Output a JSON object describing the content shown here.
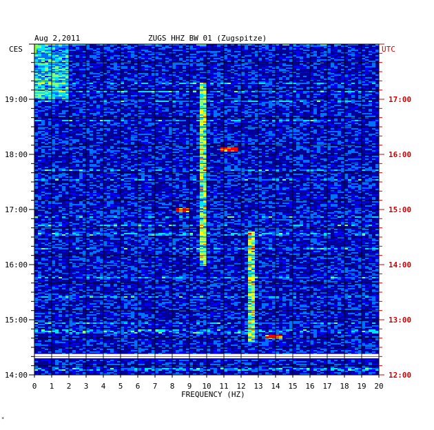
{
  "header": {
    "date": "Aug 2,2011",
    "station": "ZUGS HHZ BW 01 (Zugspitze)"
  },
  "left_axis_label": "CES",
  "right_axis_label": "UTC",
  "footnote": "*",
  "colors": {
    "left_text": "#000000",
    "right_text": "#cc0000",
    "background_plot": "#000099",
    "grid": "#000000"
  },
  "chart_data": {
    "type": "heatmap",
    "title": "ZUGS HHZ BW 01 (Zugspitze)",
    "xlabel": "FREQUENCY (HZ)",
    "xlim": [
      0,
      20
    ],
    "x_ticks": [
      "0",
      "1",
      "2",
      "3",
      "4",
      "5",
      "6",
      "7",
      "8",
      "9",
      "10",
      "11",
      "12",
      "13",
      "14",
      "15",
      "16",
      "17",
      "18",
      "19",
      "20"
    ],
    "left_time_labels": [
      "19:00",
      "18:00",
      "17:00",
      "16:00",
      "15:00",
      "14:00"
    ],
    "right_time_labels": [
      "17:00",
      "16:00",
      "15:00",
      "14:00",
      "13:00",
      "12:00"
    ],
    "time_hours_ces": [
      19,
      18,
      17,
      16,
      15,
      14
    ],
    "ylim_hours_ces": [
      14.0,
      20.0
    ],
    "gap_band_hours_ces": [
      14.3,
      14.38
    ],
    "colorscale": [
      "#000088",
      "#0000ff",
      "#0070ff",
      "#00e0ff",
      "#80ff80",
      "#ffff00",
      "#ff8000",
      "#ff0000"
    ],
    "strong_features": [
      {
        "freq_hz": 9.7,
        "from_hours": 16.0,
        "to_hours": 19.3,
        "label": "persistent line ~9.7 Hz"
      },
      {
        "freq_hz": 12.5,
        "from_hours": 14.6,
        "to_hours": 16.6,
        "label": "persistent line ~12.5 Hz"
      },
      {
        "freq_hz": 8.5,
        "at_hours": 17.0,
        "label": "hot spot"
      },
      {
        "freq_hz": 11.2,
        "at_hours": 18.1,
        "label": "hot spot"
      },
      {
        "freq_hz": 13.8,
        "at_hours": 14.7,
        "label": "broadband burst"
      }
    ]
  }
}
